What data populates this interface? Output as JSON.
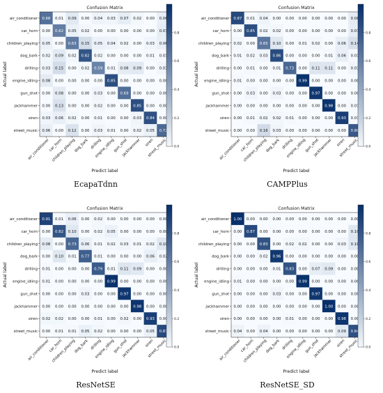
{
  "figure": {
    "captions": [
      "EcapaTdnn",
      "CAMPPlus",
      "ResNetSE",
      "ResNetSE_SD"
    ]
  },
  "chart_data": [
    {
      "type": "heatmap",
      "title": "Confusion Matrix",
      "xlabel": "Predict label",
      "ylabel": "Actual label",
      "caption": "EcapaTdnn",
      "classes": [
        "air_conditioner",
        "car_horn",
        "children_playing",
        "dog_bark",
        "drilling",
        "engine_idling",
        "gun_shot",
        "jackhammer",
        "siren",
        "street_music"
      ],
      "colorbar_ticks": [
        "0.8",
        "0.6",
        "0.4",
        "0.2",
        "0.0"
      ],
      "colormap": [
        "#f7fbff",
        "#08306b"
      ],
      "matrix": [
        [
          0.68,
          0.01,
          0.09,
          0.0,
          0.04,
          0.03,
          0.07,
          0.02,
          0.0,
          0.06
        ],
        [
          0.0,
          0.62,
          0.05,
          0.02,
          0.0,
          0.0,
          0.0,
          0.0,
          0.0,
          0.07
        ],
        [
          0.05,
          0.0,
          0.63,
          0.15,
          0.05,
          0.04,
          0.02,
          0.0,
          0.03,
          0.06
        ],
        [
          0.02,
          0.09,
          0.02,
          0.82,
          0.02,
          0.0,
          0.0,
          0.0,
          0.01,
          0.01
        ],
        [
          0.03,
          0.15,
          0.0,
          0.02,
          0.59,
          0.01,
          0.08,
          0.09,
          0.0,
          0.03
        ],
        [
          0.08,
          0.0,
          0.0,
          0.0,
          0.0,
          0.85,
          0.0,
          0.0,
          0.0,
          0.0
        ],
        [
          0.0,
          0.08,
          0.0,
          0.0,
          0.03,
          0.0,
          0.69,
          0.0,
          0.0,
          0.0
        ],
        [
          0.0,
          0.13,
          0.0,
          0.0,
          0.02,
          0.0,
          0.0,
          0.85,
          0.0,
          0.0
        ],
        [
          0.03,
          0.06,
          0.02,
          0.0,
          0.01,
          0.0,
          0.0,
          0.03,
          0.84,
          0.0
        ],
        [
          0.06,
          0.0,
          0.12,
          0.0,
          0.03,
          0.01,
          0.0,
          0.02,
          0.05,
          0.72
        ]
      ]
    },
    {
      "type": "heatmap",
      "title": "Confusion Matrix",
      "xlabel": "Predict label",
      "ylabel": "Actual label",
      "caption": "CAMPPlus",
      "classes": [
        "air_conditioner",
        "car_horn",
        "children_playing",
        "dog_bark",
        "drilling",
        "engine_idling",
        "gun_shot",
        "jackhammer",
        "siren",
        "street_music"
      ],
      "colorbar_ticks": [
        "0.8",
        "0.6",
        "0.4",
        "0.2",
        "0.0"
      ],
      "colormap": [
        "#f7fbff",
        "#08306b"
      ],
      "matrix": [
        [
          0.87,
          0.01,
          0.04,
          0.0,
          0.0,
          0.0,
          0.0,
          0.0,
          0.0,
          0.08
        ],
        [
          0.0,
          0.85,
          0.02,
          0.02,
          0.0,
          0.0,
          0.0,
          0.0,
          0.0,
          0.07
        ],
        [
          0.02,
          0.0,
          0.65,
          0.1,
          0.0,
          0.01,
          0.02,
          0.0,
          0.06,
          0.14
        ],
        [
          0.01,
          0.02,
          0.03,
          0.86,
          0.0,
          0.0,
          0.0,
          0.01,
          0.06,
          0.01
        ],
        [
          0.0,
          0.01,
          0.0,
          0.01,
          0.73,
          0.0,
          0.11,
          0.11,
          0.0,
          0.03
        ],
        [
          0.01,
          0.0,
          0.0,
          0.0,
          0.0,
          0.99,
          0.0,
          0.0,
          0.0,
          0.0
        ],
        [
          0.0,
          0.03,
          0.0,
          0.03,
          0.0,
          0.0,
          0.97,
          0.0,
          0.0,
          0.0
        ],
        [
          0.0,
          0.0,
          0.0,
          0.0,
          0.0,
          0.0,
          0.0,
          0.98,
          0.0,
          0.01
        ],
        [
          0.0,
          0.01,
          0.02,
          0.02,
          0.01,
          0.0,
          0.0,
          0.0,
          0.93,
          0.01
        ],
        [
          0.0,
          0.0,
          0.16,
          0.03,
          0.0,
          0.0,
          0.0,
          0.0,
          0.0,
          0.8
        ]
      ]
    },
    {
      "type": "heatmap",
      "title": "Confusion Matrix",
      "xlabel": "Predict label",
      "ylabel": "Actual label",
      "caption": "ResNetSE",
      "classes": [
        "air_conditioner",
        "car_horn",
        "children_playing",
        "dog_bark",
        "drilling",
        "engine_idling",
        "gun_shot",
        "jackhammer",
        "siren",
        "street_music"
      ],
      "colorbar_ticks": [
        "0.8",
        "0.6",
        "0.4",
        "0.2",
        "0.0"
      ],
      "colormap": [
        "#f7fbff",
        "#08306b"
      ],
      "matrix": [
        [
          0.91,
          0.01,
          0.06,
          0.0,
          0.02,
          0.0,
          0.0,
          0.0,
          0.0,
          0.0
        ],
        [
          0.0,
          0.82,
          0.1,
          0.0,
          0.02,
          0.05,
          0.0,
          0.0,
          0.0,
          0.0
        ],
        [
          0.08,
          0.0,
          0.73,
          0.06,
          0.01,
          0.02,
          0.03,
          0.01,
          0.02,
          0.1
        ],
        [
          0.0,
          0.1,
          0.01,
          0.77,
          0.01,
          0.0,
          0.0,
          0.0,
          0.06,
          0.02
        ],
        [
          0.01,
          0.0,
          0.0,
          0.0,
          0.79,
          0.01,
          0.11,
          0.09,
          0.0,
          0.0
        ],
        [
          0.01,
          0.0,
          0.0,
          0.0,
          0.0,
          0.99,
          0.0,
          0.0,
          0.0,
          0.0
        ],
        [
          0.0,
          0.0,
          0.0,
          0.03,
          0.0,
          0.0,
          0.97,
          0.0,
          0.0,
          0.0
        ],
        [
          0.0,
          0.0,
          0.0,
          0.0,
          0.0,
          0.0,
          0.0,
          0.98,
          0.0,
          0.0
        ],
        [
          0.02,
          0.02,
          0.0,
          0.0,
          0.01,
          0.0,
          0.02,
          0.0,
          0.93,
          0.0
        ],
        [
          0.0,
          0.01,
          0.01,
          0.05,
          0.02,
          0.0,
          0.0,
          0.0,
          0.05,
          0.87
        ]
      ]
    },
    {
      "type": "heatmap",
      "title": "Confusion Matrix",
      "xlabel": "Predict label",
      "ylabel": "Actual label",
      "caption": "ResNetSE_SD",
      "classes": [
        "air_conditioner",
        "car_horn",
        "children_playing",
        "dog_bark",
        "drilling",
        "engine_idling",
        "gun_shot",
        "jackhammer",
        "siren",
        "street_music"
      ],
      "colorbar_ticks": [
        "0.8",
        "0.6",
        "0.4",
        "0.2",
        "0.0"
      ],
      "colormap": [
        "#f7fbff",
        "#08306b"
      ],
      "matrix": [
        [
          1.0,
          0.0,
          0.0,
          0.0,
          0.0,
          0.0,
          0.0,
          0.0,
          0.0,
          0.0
        ],
        [
          0.0,
          0.87,
          0.0,
          0.0,
          0.0,
          0.0,
          0.0,
          0.0,
          0.0,
          0.1
        ],
        [
          0.0,
          0.0,
          0.83,
          0.0,
          0.02,
          0.02,
          0.0,
          0.0,
          0.03,
          0.1
        ],
        [
          0.0,
          0.0,
          0.02,
          0.96,
          0.0,
          0.0,
          0.0,
          0.0,
          0.0,
          0.0
        ],
        [
          0.0,
          0.0,
          0.0,
          0.01,
          0.83,
          0.0,
          0.07,
          0.09,
          0.0,
          0.0
        ],
        [
          0.01,
          0.0,
          0.0,
          0.0,
          0.0,
          0.99,
          0.0,
          0.0,
          0.0,
          0.0
        ],
        [
          0.0,
          0.0,
          0.0,
          0.03,
          0.0,
          0.0,
          0.97,
          0.0,
          0.0,
          0.0
        ],
        [
          0.0,
          0.0,
          0.0,
          0.0,
          0.0,
          0.0,
          0.0,
          1.0,
          0.0,
          0.0
        ],
        [
          0.0,
          0.0,
          0.0,
          0.0,
          0.01,
          0.0,
          0.0,
          0.0,
          0.98,
          0.0
        ],
        [
          0.04,
          0.0,
          0.04,
          0.0,
          0.0,
          0.0,
          0.0,
          0.0,
          0.09,
          0.84
        ]
      ]
    }
  ]
}
